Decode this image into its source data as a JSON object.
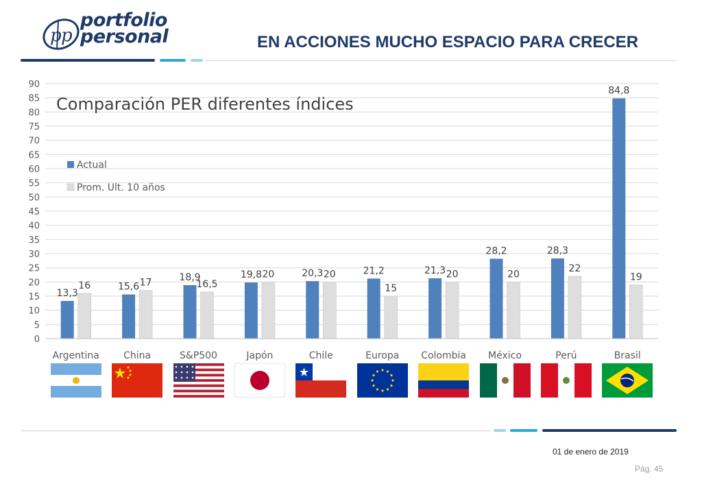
{
  "header": {
    "logo_line1": "portfolio",
    "logo_line2": "personal",
    "title": "EN ACCIONES MUCHO ESPACIO PARA CRECER"
  },
  "colors": {
    "brand_dark": "#1f3a68",
    "brand_light": "#2aa7df",
    "brand_pale": "#9fd3ec",
    "series_actual": "#4f81bd",
    "series_prom": "#dedede"
  },
  "chart_data": {
    "type": "bar",
    "title": "Comparación PER diferentes índices",
    "categories": [
      "Argentina",
      "China",
      "S&P500",
      "Japón",
      "Chile",
      "Europa",
      "Colombia",
      "México",
      "Perú",
      "Brasil"
    ],
    "series": [
      {
        "name": "Actual",
        "values": [
          13.3,
          15.6,
          18.9,
          19.8,
          20.3,
          21.2,
          21.3,
          28.2,
          28.3,
          84.8
        ],
        "labels": [
          "13,3",
          "15,6",
          "18,9",
          "19,8",
          "20,3",
          "21,2",
          "21,3",
          "28,2",
          "28,3",
          "84,8"
        ]
      },
      {
        "name": "Prom. Ult. 10 años",
        "values": [
          16,
          17,
          16.5,
          20,
          20,
          15,
          20,
          20,
          22,
          19
        ],
        "labels": [
          "16",
          "17",
          "16,5",
          "20",
          "20",
          "15",
          "20",
          "20",
          "22",
          "19"
        ]
      }
    ],
    "ylim": [
      0,
      90
    ],
    "yticks": [
      0,
      5,
      10,
      15,
      20,
      25,
      30,
      35,
      40,
      45,
      50,
      55,
      60,
      65,
      70,
      75,
      80,
      85,
      90
    ],
    "grid": true,
    "legend": "top-left"
  },
  "flags": [
    "argentina-flag",
    "china-flag",
    "usa-flag",
    "japan-flag",
    "chile-flag",
    "eu-flag",
    "colombia-flag",
    "mexico-flag",
    "peru-flag",
    "brazil-flag"
  ],
  "footer": {
    "date": "01 de enero de 2019",
    "page": "Pág. 45"
  }
}
